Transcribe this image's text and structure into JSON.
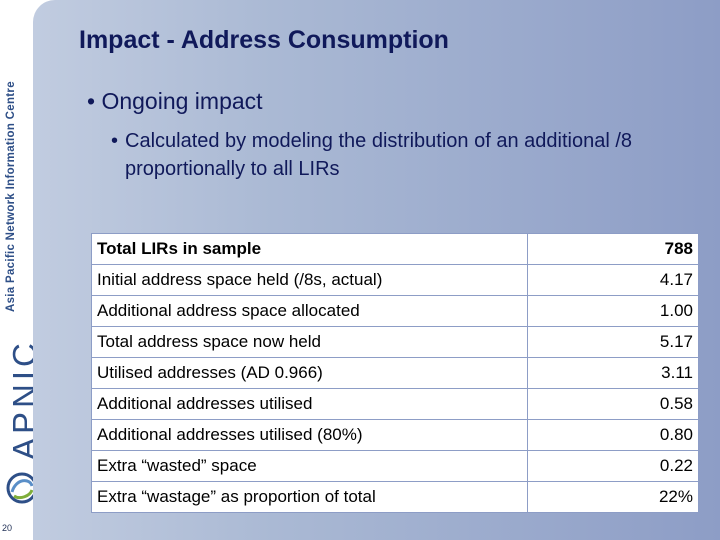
{
  "sidebar": {
    "org_name": "Asia Pacific Network Information Centre",
    "logo_text": "APNIC",
    "page_number": "20"
  },
  "slide": {
    "title": "Impact - Address Consumption",
    "bullet_1": "Ongoing impact",
    "bullet_2": "Calculated by modeling the distribution of an additional /8 proportionally to all LIRs",
    "bullet_symbol": "•"
  },
  "table": {
    "rows": [
      {
        "label": "Total LIRs in sample",
        "value": "788"
      },
      {
        "label": "Initial address space held (/8s, actual)",
        "value": "4.17"
      },
      {
        "label": "Additional address space allocated",
        "value": "1.00"
      },
      {
        "label": "Total address space now held",
        "value": "5.17"
      },
      {
        "label": "Utilised addresses (AD 0.966)",
        "value": "3.11"
      },
      {
        "label": "Additional addresses utilised",
        "value": "0.58"
      },
      {
        "label": "Additional addresses utilised (80%)",
        "value": "0.80"
      },
      {
        "label": "Extra “wasted” space",
        "value": "0.22"
      },
      {
        "label": "Extra “wastage” as proportion of total",
        "value": "22%"
      }
    ]
  }
}
